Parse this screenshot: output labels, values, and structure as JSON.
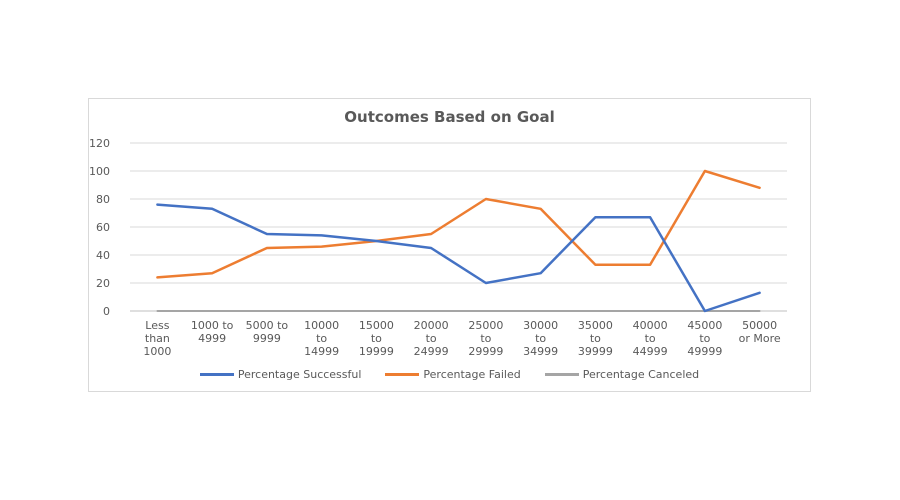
{
  "chart_data": {
    "type": "line",
    "title": "Outcomes Based on Goal",
    "xlabel": "",
    "ylabel": "",
    "ylim": [
      0,
      120
    ],
    "yticks": [
      0,
      20,
      40,
      60,
      80,
      100,
      120
    ],
    "grid": true,
    "legend_position": "bottom",
    "categories": [
      [
        "Less",
        "than",
        "1000"
      ],
      [
        "1000 to",
        "4999"
      ],
      [
        "5000 to",
        "9999"
      ],
      [
        "10000",
        "to",
        "14999"
      ],
      [
        "15000",
        "to",
        "19999"
      ],
      [
        "20000",
        "to",
        "24999"
      ],
      [
        "25000",
        "to",
        "29999"
      ],
      [
        "30000",
        "to",
        "34999"
      ],
      [
        "35000",
        "to",
        "39999"
      ],
      [
        "40000",
        "to",
        "44999"
      ],
      [
        "45000",
        "to",
        "49999"
      ],
      [
        "50000",
        "or More"
      ]
    ],
    "series": [
      {
        "name": "Percentage Successful",
        "color": "#4472c4",
        "values": [
          76,
          73,
          55,
          54,
          50,
          45,
          20,
          27,
          67,
          67,
          0,
          13
        ]
      },
      {
        "name": "Percentage Failed",
        "color": "#ed7d31",
        "values": [
          24,
          27,
          45,
          46,
          50,
          55,
          80,
          73,
          33,
          33,
          100,
          88
        ]
      },
      {
        "name": "Percentage Canceled",
        "color": "#a5a5a5",
        "values": [
          0,
          0,
          0,
          0,
          0,
          0,
          0,
          0,
          0,
          0,
          0,
          0
        ]
      }
    ]
  }
}
